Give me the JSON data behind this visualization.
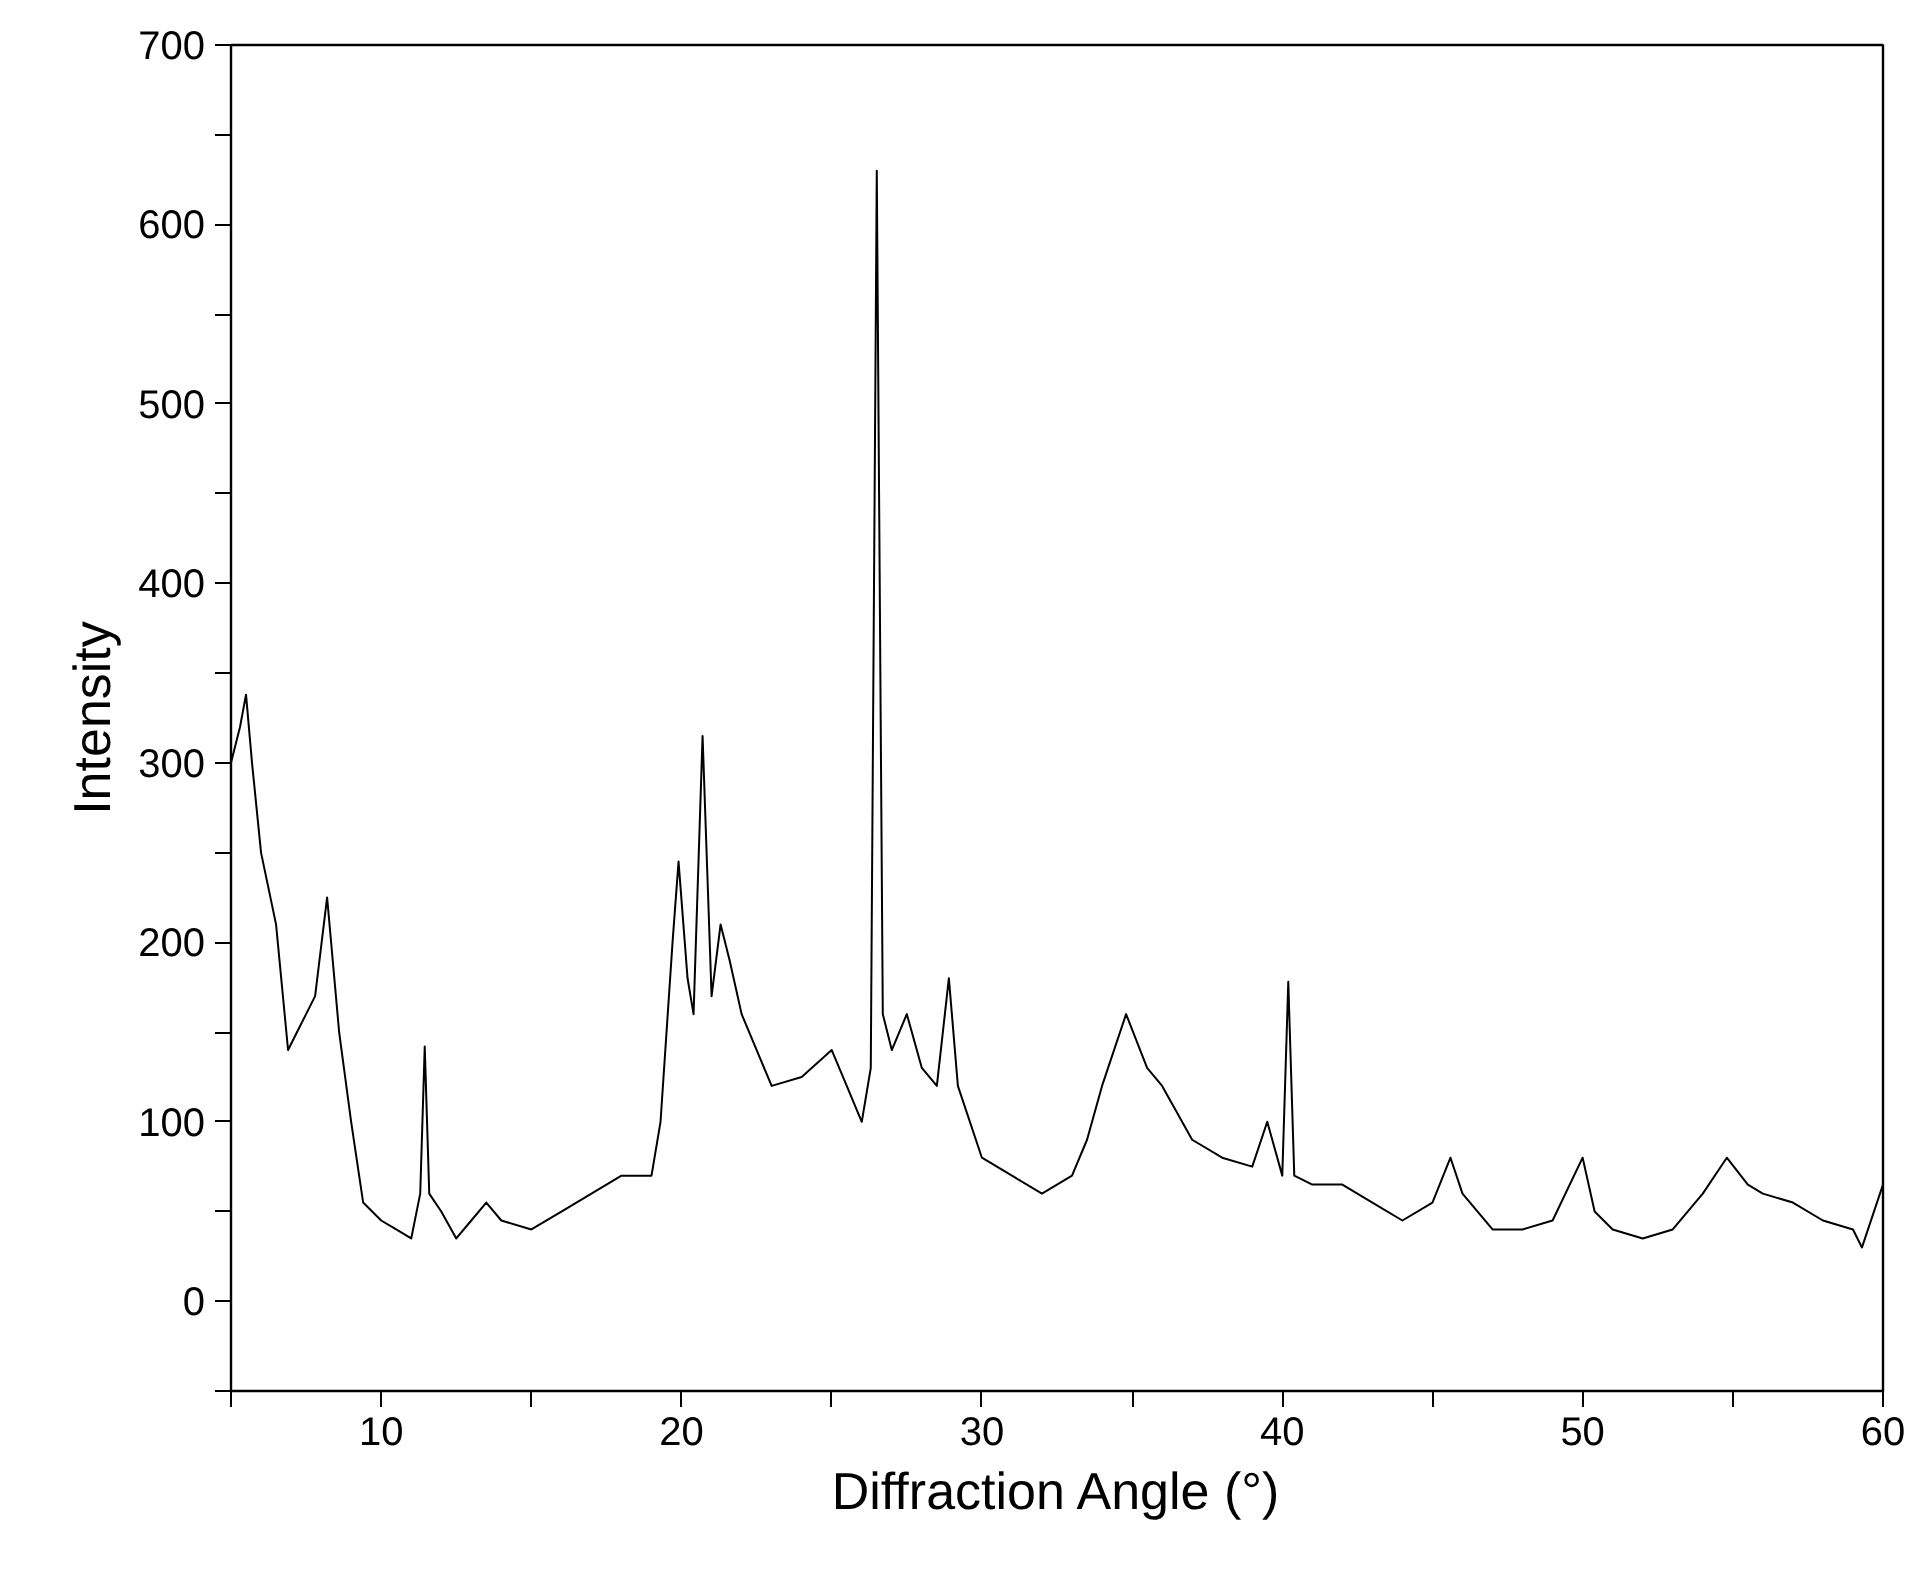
{
  "chart_data": {
    "type": "line",
    "xlabel": "Diffraction Angle (°)",
    "ylabel": "Intensity",
    "x": [
      5.0,
      5.3,
      5.5,
      5.7,
      6.0,
      6.5,
      6.9,
      7.2,
      7.5,
      7.8,
      8.2,
      8.6,
      9.0,
      9.4,
      10.0,
      10.5,
      11.0,
      11.3,
      11.45,
      11.6,
      12.0,
      12.5,
      13.0,
      13.5,
      14.0,
      15.0,
      16.0,
      17.0,
      18.0,
      19.0,
      19.3,
      19.7,
      19.9,
      20.2,
      20.4,
      20.7,
      21.0,
      21.3,
      21.6,
      22.0,
      23.0,
      24.0,
      25.0,
      25.5,
      26.0,
      26.3,
      26.5,
      26.7,
      27.0,
      27.5,
      28.0,
      28.5,
      28.9,
      29.2,
      30.0,
      31.0,
      32.0,
      33.0,
      33.5,
      34.0,
      34.8,
      35.5,
      36.0,
      37.0,
      38.0,
      39.0,
      39.5,
      40.0,
      40.2,
      40.4,
      41.0,
      42.0,
      43.0,
      44.0,
      45.0,
      45.6,
      46.0,
      47.0,
      48.0,
      49.0,
      50.0,
      50.4,
      51.0,
      52.0,
      53.0,
      54.0,
      54.8,
      55.5,
      56.0,
      57.0,
      58.0,
      59.0,
      59.3,
      60.0
    ],
    "series": [
      {
        "color": "#000000",
        "values": [
          300,
          320,
          338,
          300,
          250,
          210,
          140,
          150,
          160,
          170,
          225,
          150,
          100,
          55,
          45,
          40,
          35,
          60,
          142,
          60,
          50,
          35,
          45,
          55,
          45,
          40,
          50,
          60,
          70,
          70,
          100,
          200,
          245,
          180,
          160,
          315,
          170,
          210,
          190,
          160,
          120,
          125,
          140,
          120,
          100,
          130,
          630,
          160,
          140,
          160,
          130,
          120,
          180,
          120,
          80,
          70,
          60,
          70,
          90,
          120,
          160,
          130,
          120,
          90,
          80,
          75,
          100,
          70,
          178,
          70,
          65,
          65,
          55,
          45,
          55,
          80,
          60,
          40,
          40,
          45,
          80,
          50,
          40,
          35,
          40,
          60,
          80,
          65,
          60,
          55,
          45,
          40,
          30,
          65
        ]
      }
    ],
    "xlim": [
      5,
      60
    ],
    "ylim": [
      -50,
      700
    ],
    "xticks": [
      {
        "value": 5,
        "label": null
      },
      10,
      {
        "value": 15,
        "label": null
      },
      20,
      {
        "value": 25,
        "label": null
      },
      30,
      {
        "value": 35,
        "label": null
      },
      40,
      {
        "value": 45,
        "label": null
      },
      50,
      {
        "value": 55,
        "label": null
      },
      60
    ],
    "yticks": [
      {
        "value": -50,
        "label": null
      },
      0,
      {
        "value": 50,
        "label": null
      },
      100,
      {
        "value": 150,
        "label": null
      },
      200,
      {
        "value": 250,
        "label": null
      },
      300,
      {
        "value": 350,
        "label": null
      },
      400,
      {
        "value": 450,
        "label": null
      },
      500,
      {
        "value": 550,
        "label": null
      },
      600,
      {
        "value": 650,
        "label": null
      },
      700
    ],
    "grid": false,
    "marker": "none",
    "line_style": "solid"
  }
}
